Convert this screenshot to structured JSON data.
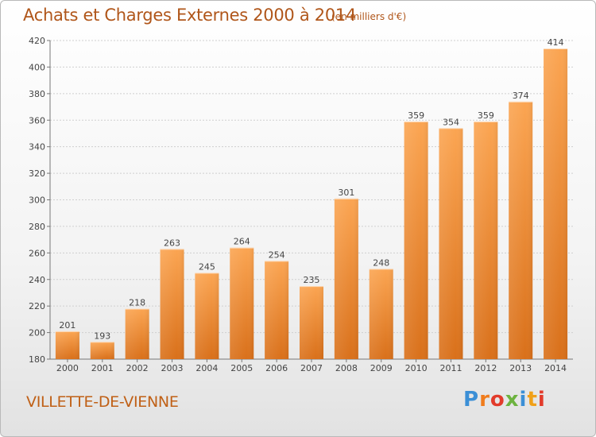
{
  "chart_data": {
    "type": "bar",
    "title": "Achats et Charges Externes 2000 à 2014",
    "subtitle": "(en milliers d'€)",
    "categories": [
      "2000",
      "2001",
      "2002",
      "2003",
      "2004",
      "2005",
      "2006",
      "2007",
      "2008",
      "2009",
      "2010",
      "2011",
      "2012",
      "2013",
      "2014"
    ],
    "values": [
      201,
      193,
      218,
      263,
      245,
      264,
      254,
      235,
      301,
      248,
      359,
      354,
      359,
      374,
      414
    ],
    "ylim": [
      180,
      420
    ],
    "yticks": [
      180,
      200,
      220,
      240,
      260,
      280,
      300,
      320,
      340,
      360,
      380,
      400,
      420
    ],
    "grid": true,
    "bar_color": "#f0922e"
  },
  "footer": {
    "city": "VILLETTE-DE-VIENNE",
    "logo": [
      "P",
      "r",
      "o",
      "x",
      "i",
      "t",
      "i"
    ],
    "logo_colors": [
      "#3b8fd6",
      "#f07c1c",
      "#e23b2b",
      "#6db33f",
      "#3b8fd6",
      "#f0a019",
      "#e23b2b"
    ]
  }
}
